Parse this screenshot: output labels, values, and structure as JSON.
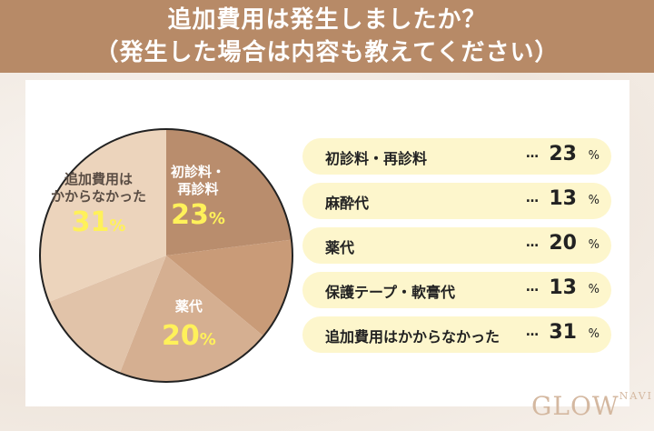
{
  "header": {
    "line1": "追加費用は発生しましたか？",
    "line2": "（発生した場合は内容も教えてください）"
  },
  "colors": {
    "header_bg": "#b78a67",
    "pie_outline": "#222222",
    "pct_label": "#fff15a",
    "row_bg": "#fdf6cc"
  },
  "chart_data": {
    "type": "pie",
    "title": "追加費用は発生しましたか？（発生した場合は内容も教えてください）",
    "categories": [
      "初診料・再診料",
      "麻酔代",
      "薬代",
      "保護テープ・軟膏代",
      "追加費用はかからなかった"
    ],
    "values": [
      23,
      13,
      20,
      13,
      31
    ],
    "unit": "%",
    "slice_colors": [
      "#b98d6d",
      "#c99b78",
      "#d5af91",
      "#e1c3a9",
      "#ecd4bc"
    ],
    "start_angle": "12 o'clock, clockwise",
    "legend_position": "right"
  },
  "pie_labels": [
    {
      "name_line1": "初診料・",
      "name_line2": "再診料",
      "value": "23",
      "pct": "%"
    },
    {
      "name_line1": "薬代",
      "name_line2": "",
      "value": "20",
      "pct": "%"
    },
    {
      "name_line1": "追加費用は",
      "name_line2": "かからなかった",
      "value": "31",
      "pct": "%"
    }
  ],
  "rows": [
    {
      "label": "初診料・再診料",
      "dots": "…",
      "value": "23",
      "pct": "%"
    },
    {
      "label": "麻酔代",
      "dots": "…",
      "value": "13",
      "pct": "%"
    },
    {
      "label": "薬代",
      "dots": "…",
      "value": "20",
      "pct": "%"
    },
    {
      "label": "保護テープ・軟膏代",
      "dots": "…",
      "value": "13",
      "pct": "%"
    },
    {
      "label": "追加費用はかからなかった",
      "dots": "…",
      "value": "31",
      "pct": "%"
    }
  ],
  "logo": {
    "main": "GLOW",
    "sub": "NAVI"
  }
}
